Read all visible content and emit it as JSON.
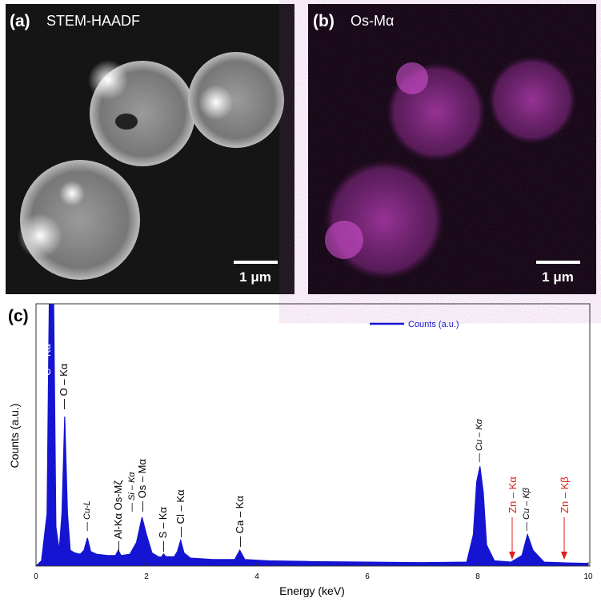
{
  "figure": {
    "panels": [
      {
        "label": "(a)",
        "title": "STEM-HAADF",
        "scale_bar": "1 μm"
      },
      {
        "label": "(b)",
        "title": "Os-Mα",
        "scale_bar": "1 μm"
      }
    ]
  },
  "chart_data": {
    "type": "area",
    "label": "(c)",
    "x_label": "Energy (keV)",
    "y_label": "Counts (a.u.)",
    "x": [
      0,
      0.1,
      0.2,
      0.24,
      0.28,
      0.32,
      0.36,
      0.42,
      0.47,
      0.52,
      0.57,
      0.62,
      0.7,
      0.8,
      0.87,
      0.93,
      0.99,
      1.1,
      1.3,
      1.44,
      1.49,
      1.54,
      1.7,
      1.82,
      1.92,
      2.0,
      2.1,
      2.22,
      2.27,
      2.31,
      2.35,
      2.5,
      2.56,
      2.62,
      2.68,
      2.8,
      3.2,
      3.6,
      3.69,
      3.78,
      4.2,
      5,
      6,
      7,
      7.8,
      7.92,
      7.98,
      8.04,
      8.1,
      8.16,
      8.3,
      8.6,
      8.8,
      8.9,
      9.0,
      9.2,
      9.6,
      10
    ],
    "series": [
      {
        "name": "Counts (a.u.)",
        "color": "#1414d2",
        "values": [
          0,
          2,
          20,
          100,
          130,
          100,
          15,
          6,
          20,
          57,
          20,
          6,
          5,
          4.5,
          6,
          10.7,
          5.5,
          4.5,
          4,
          4,
          6,
          4,
          4.5,
          9,
          18.6,
          12,
          5,
          3.5,
          3.4,
          4.6,
          3.6,
          3.5,
          5.5,
          9.8,
          5,
          3,
          2.5,
          2.5,
          6,
          2.5,
          2,
          1.7,
          1.5,
          1.3,
          1.5,
          12,
          32,
          38,
          28,
          8,
          2,
          1.5,
          4,
          12,
          6,
          1.5,
          1.2,
          1
        ]
      }
    ],
    "xlim": [
      0,
      10
    ],
    "ylim": [
      0,
      100
    ],
    "xticks": [
      0,
      2,
      4,
      6,
      8,
      10
    ],
    "legend": "upper right",
    "annotations": [
      {
        "text": "C – Kα —",
        "color": "#ffffff"
      },
      {
        "text": "— O – Kα",
        "color": "#000000"
      },
      {
        "text": "— Cu-L",
        "color": "#000000"
      },
      {
        "text": "— Al-Kα Os-Mζ",
        "color": "#000000"
      },
      {
        "text": "— Si – Kα",
        "color": "#000000"
      },
      {
        "text": "— Os – Mα",
        "color": "#000000"
      },
      {
        "text": "— S – Kα",
        "color": "#000000"
      },
      {
        "text": "— Cl – Kα",
        "color": "#000000"
      },
      {
        "text": "— Ca – Kα",
        "color": "#000000"
      },
      {
        "text": "— Cu – Kα",
        "color": "#000000"
      },
      {
        "text": "Zn – Kα",
        "color": "#e0201a"
      },
      {
        "text": "— Cu – Kβ",
        "color": "#000000"
      },
      {
        "text": "Zn – Kβ",
        "color": "#e0201a"
      }
    ]
  }
}
